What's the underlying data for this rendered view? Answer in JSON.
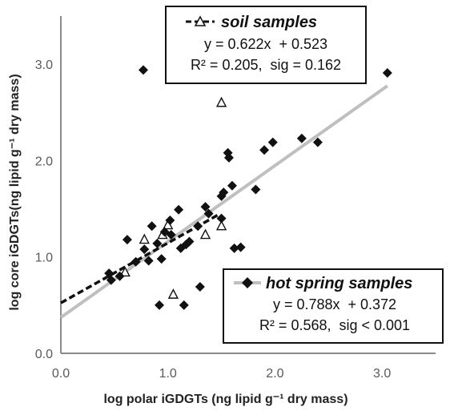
{
  "chart_data": {
    "type": "scatter",
    "xlabel": "log polar iGDGTs (ng lipid g⁻¹ dry mass)",
    "ylabel": "log core iGDGTs(ng lipid g⁻¹ dry mass)",
    "xlim": [
      0,
      3.5
    ],
    "ylim": [
      0,
      3.5
    ],
    "x_ticks": [
      "0.0",
      "1.0",
      "2.0",
      "3.0"
    ],
    "y_ticks": [
      "0.0",
      "1.0",
      "2.0",
      "3.0"
    ],
    "grid": false,
    "series": [
      {
        "name": "soil samples",
        "marker": "open-triangle",
        "color": "#111111",
        "points": [
          [
            0.6,
            0.84
          ],
          [
            0.78,
            1.18
          ],
          [
            0.95,
            1.23
          ],
          [
            1.0,
            1.33
          ],
          [
            1.05,
            0.61
          ],
          [
            1.35,
            1.23
          ],
          [
            1.5,
            2.6
          ],
          [
            1.5,
            1.32
          ]
        ],
        "trendline": {
          "style": "dashed",
          "color": "#111111",
          "x_range": [
            0.0,
            1.48
          ],
          "slope": 0.622,
          "intercept": 0.523
        },
        "equation": "y = 0.622x  + 0.523",
        "stats": "R² = 0.205,  sig = 0.162"
      },
      {
        "name": "hot spring samples",
        "marker": "filled-diamond",
        "color": "#111111",
        "points": [
          [
            0.45,
            0.83
          ],
          [
            0.47,
            0.76
          ],
          [
            0.55,
            0.8
          ],
          [
            0.62,
            1.18
          ],
          [
            0.7,
            0.95
          ],
          [
            0.77,
            2.94
          ],
          [
            0.78,
            1.08
          ],
          [
            0.82,
            0.96
          ],
          [
            0.85,
            1.32
          ],
          [
            0.9,
            1.14
          ],
          [
            0.92,
            0.5
          ],
          [
            0.94,
            0.98
          ],
          [
            0.97,
            1.26
          ],
          [
            1.02,
            1.38
          ],
          [
            1.03,
            1.23
          ],
          [
            1.1,
            1.49
          ],
          [
            1.12,
            1.09
          ],
          [
            1.15,
            0.5
          ],
          [
            1.17,
            1.13
          ],
          [
            1.2,
            1.16
          ],
          [
            1.28,
            1.32
          ],
          [
            1.3,
            0.69
          ],
          [
            1.35,
            1.52
          ],
          [
            1.38,
            1.45
          ],
          [
            1.5,
            1.63
          ],
          [
            1.5,
            1.4
          ],
          [
            1.52,
            1.67
          ],
          [
            1.56,
            2.08
          ],
          [
            1.57,
            2.03
          ],
          [
            1.6,
            1.74
          ],
          [
            1.62,
            1.09
          ],
          [
            1.68,
            1.1
          ],
          [
            1.82,
            1.7
          ],
          [
            1.9,
            2.11
          ],
          [
            1.98,
            2.19
          ],
          [
            2.25,
            2.23
          ],
          [
            2.4,
            2.19
          ],
          [
            3.05,
            2.91
          ]
        ],
        "trendline": {
          "style": "solid",
          "color": "#bfbfbf",
          "x_range": [
            0.0,
            3.05
          ],
          "slope": 0.788,
          "intercept": 0.372
        },
        "equation": "y = 0.788x  + 0.372",
        "stats": "R² = 0.568,  sig < 0.001"
      }
    ]
  }
}
